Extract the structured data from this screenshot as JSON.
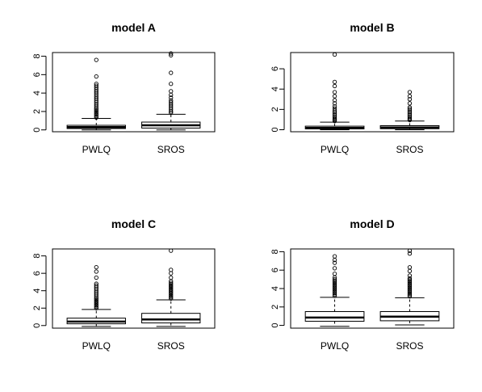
{
  "chart_data": [
    {
      "type": "boxplot",
      "title": "model A",
      "categories": [
        "PWLQ",
        "SROS"
      ],
      "yticks": [
        "0",
        "2",
        "4",
        "6",
        "8"
      ],
      "ylim": [
        -0.2,
        8.4
      ],
      "boxes": [
        {
          "name": "PWLQ",
          "min": 0.0,
          "q1": 0.15,
          "median": 0.3,
          "q3": 0.5,
          "whisker_high": 1.25,
          "outliers": [
            1.35,
            1.5,
            1.65,
            1.8,
            1.95,
            2.1,
            2.25,
            2.4,
            2.6,
            2.8,
            3.0,
            3.2,
            3.4,
            3.6,
            3.8,
            4.0,
            4.2,
            4.4,
            4.6,
            4.8,
            5.0,
            5.8,
            7.6
          ]
        },
        {
          "name": "SROS",
          "min": 0.0,
          "q1": 0.2,
          "median": 0.5,
          "q3": 0.85,
          "whisker_high": 1.7,
          "outliers": [
            1.85,
            2.0,
            2.2,
            2.4,
            2.6,
            2.8,
            3.0,
            3.2,
            3.5,
            3.8,
            4.2,
            5.0,
            6.2,
            8.1,
            8.3
          ]
        }
      ]
    },
    {
      "type": "boxplot",
      "title": "model B",
      "categories": [
        "PWLQ",
        "SROS"
      ],
      "yticks": [
        "0",
        "2",
        "4",
        "6"
      ],
      "ylim": [
        -0.2,
        7.6
      ],
      "boxes": [
        {
          "name": "PWLQ",
          "min": 0.0,
          "q1": 0.08,
          "median": 0.18,
          "q3": 0.35,
          "whisker_high": 0.75,
          "outliers": [
            0.85,
            0.95,
            1.05,
            1.15,
            1.3,
            1.45,
            1.6,
            1.75,
            1.9,
            2.1,
            2.3,
            2.6,
            2.9,
            3.3,
            3.7,
            4.3,
            4.7,
            7.4
          ]
        },
        {
          "name": "SROS",
          "min": 0.0,
          "q1": 0.1,
          "median": 0.22,
          "q3": 0.4,
          "whisker_high": 0.85,
          "outliers": [
            0.95,
            1.05,
            1.15,
            1.3,
            1.45,
            1.6,
            1.75,
            1.9,
            2.05,
            2.2,
            2.6,
            3.0,
            3.3,
            3.7
          ]
        }
      ]
    },
    {
      "type": "boxplot",
      "title": "model C",
      "categories": [
        "PWLQ",
        "SROS"
      ],
      "yticks": [
        "0",
        "2",
        "4",
        "6",
        "8"
      ],
      "ylim": [
        -0.3,
        8.8
      ],
      "boxes": [
        {
          "name": "PWLQ",
          "min": -0.1,
          "q1": 0.2,
          "median": 0.45,
          "q3": 0.85,
          "whisker_high": 1.85,
          "outliers": [
            2.0,
            2.15,
            2.3,
            2.45,
            2.6,
            2.75,
            2.9,
            3.05,
            3.2,
            3.4,
            3.6,
            3.8,
            4.0,
            4.2,
            4.4,
            4.6,
            4.8,
            5.5,
            6.2,
            6.7
          ]
        },
        {
          "name": "SROS",
          "min": -0.1,
          "q1": 0.3,
          "median": 0.7,
          "q3": 1.4,
          "whisker_high": 2.95,
          "outliers": [
            3.1,
            3.25,
            3.4,
            3.55,
            3.7,
            3.85,
            4.0,
            4.15,
            4.3,
            4.45,
            4.6,
            4.75,
            4.9,
            5.1,
            5.5,
            6.0,
            6.4,
            8.6
          ]
        }
      ]
    },
    {
      "type": "boxplot",
      "title": "model D",
      "categories": [
        "PWLQ",
        "SROS"
      ],
      "yticks": [
        "0",
        "2",
        "4",
        "6",
        "8"
      ],
      "ylim": [
        -0.3,
        8.3
      ],
      "boxes": [
        {
          "name": "PWLQ",
          "min": -0.1,
          "q1": 0.45,
          "median": 0.85,
          "q3": 1.5,
          "whisker_high": 3.05,
          "outliers": [
            3.2,
            3.35,
            3.5,
            3.65,
            3.8,
            3.95,
            4.1,
            4.25,
            4.4,
            4.55,
            4.7,
            4.85,
            5.0,
            5.2,
            5.6,
            6.2,
            6.8,
            7.1,
            7.5
          ]
        },
        {
          "name": "SROS",
          "min": 0.05,
          "q1": 0.5,
          "median": 0.95,
          "q3": 1.5,
          "whisker_high": 3.0,
          "outliers": [
            3.15,
            3.3,
            3.45,
            3.6,
            3.75,
            3.9,
            4.05,
            4.2,
            4.35,
            4.5,
            4.65,
            4.8,
            4.95,
            5.1,
            5.4,
            5.9,
            6.3,
            7.8,
            8.1
          ]
        }
      ]
    }
  ]
}
